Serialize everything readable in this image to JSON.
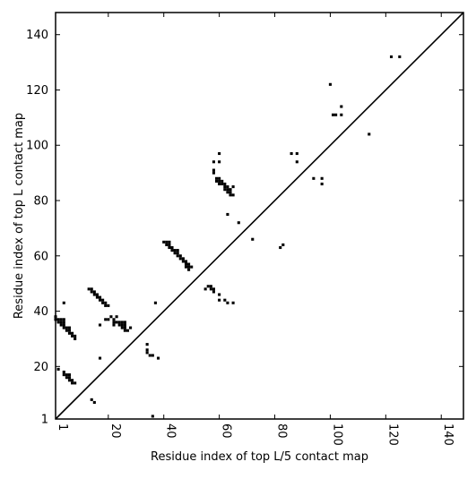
{
  "chart_data": {
    "type": "scatter",
    "title": "",
    "xlabel": "Residue index of top L/5 contact map",
    "ylabel": "Residue index of top L contact map",
    "xlim": [
      1,
      148
    ],
    "ylim": [
      1,
      148
    ],
    "x_ticks": [
      {
        "value": 1,
        "label": "1"
      },
      {
        "value": 20,
        "label": "20"
      },
      {
        "value": 40,
        "label": "40"
      },
      {
        "value": 60,
        "label": "60"
      },
      {
        "value": 80,
        "label": "80"
      },
      {
        "value": 100,
        "label": "100"
      },
      {
        "value": 120,
        "label": "120"
      },
      {
        "value": 140,
        "label": "140"
      }
    ],
    "y_ticks": [
      {
        "value": 1,
        "label": "1"
      },
      {
        "value": 20,
        "label": "20"
      },
      {
        "value": 40,
        "label": "40"
      },
      {
        "value": 60,
        "label": "60"
      },
      {
        "value": 80,
        "label": "80"
      },
      {
        "value": 100,
        "label": "100"
      },
      {
        "value": 120,
        "label": "120"
      },
      {
        "value": 140,
        "label": "140"
      }
    ],
    "x_tick_rotation": -90,
    "grid": false,
    "legend": "none",
    "marker": "square",
    "colors": {
      "points": "#000000",
      "diagonal": "#000000",
      "axes": "#000000",
      "background": "#ffffff"
    },
    "diagonal": {
      "from": [
        1,
        1
      ],
      "to": [
        148,
        148
      ]
    },
    "series": [
      {
        "points": [
          [
            1,
            38
          ],
          [
            1,
            37
          ],
          [
            2,
            37
          ],
          [
            2,
            36
          ],
          [
            3,
            37
          ],
          [
            3,
            36
          ],
          [
            3,
            35
          ],
          [
            4,
            37
          ],
          [
            4,
            36
          ],
          [
            4,
            35
          ],
          [
            4,
            34
          ],
          [
            5,
            33
          ],
          [
            5,
            34
          ],
          [
            6,
            32
          ],
          [
            6,
            33
          ],
          [
            6,
            34
          ],
          [
            7,
            32
          ],
          [
            7,
            31
          ],
          [
            8,
            31
          ],
          [
            8,
            30
          ],
          [
            2,
            19
          ],
          [
            4,
            18
          ],
          [
            4,
            17
          ],
          [
            5,
            17
          ],
          [
            5,
            16
          ],
          [
            6,
            17
          ],
          [
            6,
            16
          ],
          [
            6,
            15
          ],
          [
            7,
            15
          ],
          [
            7,
            14
          ],
          [
            8,
            14
          ],
          [
            4,
            43
          ],
          [
            13,
            48
          ],
          [
            14,
            48
          ],
          [
            14,
            47
          ],
          [
            15,
            47
          ],
          [
            15,
            46
          ],
          [
            16,
            46
          ],
          [
            16,
            45
          ],
          [
            17,
            45
          ],
          [
            17,
            44
          ],
          [
            18,
            44
          ],
          [
            18,
            43
          ],
          [
            19,
            43
          ],
          [
            19,
            42
          ],
          [
            20,
            42
          ],
          [
            17,
            35
          ],
          [
            17,
            23
          ],
          [
            19,
            37
          ],
          [
            20,
            37
          ],
          [
            21,
            38
          ],
          [
            22,
            37
          ],
          [
            22,
            36
          ],
          [
            22,
            35
          ],
          [
            23,
            38
          ],
          [
            23,
            36
          ],
          [
            24,
            36
          ],
          [
            24,
            35
          ],
          [
            25,
            36
          ],
          [
            25,
            35
          ],
          [
            25,
            34
          ],
          [
            26,
            36
          ],
          [
            26,
            35
          ],
          [
            26,
            34
          ],
          [
            26,
            33
          ],
          [
            27,
            33
          ],
          [
            28,
            34
          ],
          [
            14,
            8
          ],
          [
            15,
            7
          ],
          [
            34,
            28
          ],
          [
            34,
            26
          ],
          [
            34,
            25
          ],
          [
            35,
            24
          ],
          [
            36,
            24
          ],
          [
            38,
            23
          ],
          [
            36,
            2
          ],
          [
            37,
            43
          ],
          [
            40,
            65
          ],
          [
            41,
            65
          ],
          [
            41,
            64
          ],
          [
            42,
            65
          ],
          [
            42,
            64
          ],
          [
            42,
            63
          ],
          [
            43,
            63
          ],
          [
            43,
            62
          ],
          [
            44,
            62
          ],
          [
            44,
            61
          ],
          [
            45,
            62
          ],
          [
            45,
            61
          ],
          [
            45,
            60
          ],
          [
            46,
            60
          ],
          [
            46,
            59
          ],
          [
            47,
            59
          ],
          [
            47,
            58
          ],
          [
            48,
            58
          ],
          [
            48,
            57
          ],
          [
            48,
            56
          ],
          [
            49,
            57
          ],
          [
            49,
            56
          ],
          [
            49,
            55
          ],
          [
            50,
            56
          ],
          [
            55,
            48
          ],
          [
            56,
            49
          ],
          [
            57,
            49
          ],
          [
            57,
            48
          ],
          [
            58,
            48
          ],
          [
            58,
            47
          ],
          [
            58,
            94
          ],
          [
            58,
            91
          ],
          [
            58,
            90
          ],
          [
            59,
            88
          ],
          [
            59,
            87
          ],
          [
            60,
            97
          ],
          [
            60,
            94
          ],
          [
            60,
            88
          ],
          [
            60,
            87
          ],
          [
            60,
            86
          ],
          [
            61,
            87
          ],
          [
            61,
            86
          ],
          [
            62,
            86
          ],
          [
            62,
            85
          ],
          [
            62,
            84
          ],
          [
            63,
            85
          ],
          [
            63,
            84
          ],
          [
            63,
            83
          ],
          [
            64,
            84
          ],
          [
            64,
            83
          ],
          [
            64,
            82
          ],
          [
            65,
            85
          ],
          [
            65,
            82
          ],
          [
            63,
            75
          ],
          [
            67,
            72
          ],
          [
            60,
            46
          ],
          [
            60,
            44
          ],
          [
            62,
            44
          ],
          [
            63,
            43
          ],
          [
            65,
            43
          ],
          [
            72,
            66
          ],
          [
            82,
            63
          ],
          [
            83,
            64
          ],
          [
            86,
            97
          ],
          [
            88,
            97
          ],
          [
            88,
            94
          ],
          [
            94,
            88
          ],
          [
            97,
            88
          ],
          [
            97,
            86
          ],
          [
            100,
            122
          ],
          [
            101,
            111
          ],
          [
            102,
            111
          ],
          [
            104,
            114
          ],
          [
            104,
            111
          ],
          [
            114,
            104
          ],
          [
            122,
            132
          ],
          [
            125,
            132
          ]
        ]
      }
    ]
  }
}
